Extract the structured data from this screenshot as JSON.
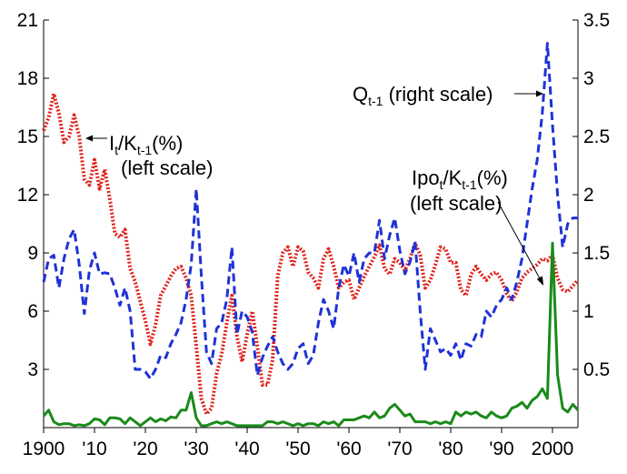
{
  "chart_data": {
    "type": "line",
    "x_axis": {
      "range": [
        1900,
        2005
      ],
      "ticks": [
        1900,
        1910,
        1920,
        1930,
        1940,
        1950,
        1960,
        1970,
        1980,
        1990,
        2000
      ],
      "tick_labels": [
        "1900",
        "'10",
        "'20",
        "'30",
        "'40",
        "'50",
        "'60",
        "'70",
        "'80",
        "'90",
        "2000"
      ]
    },
    "left_axis": {
      "range": [
        0,
        21
      ],
      "ticks": [
        3,
        6,
        9,
        12,
        15,
        18,
        21
      ],
      "tick_labels": [
        "3",
        "6",
        "9",
        "12",
        "15",
        "18",
        "21"
      ]
    },
    "right_axis": {
      "range": [
        0,
        3.5
      ],
      "ticks": [
        0.5,
        1,
        1.5,
        2,
        2.5,
        3,
        3.5
      ],
      "tick_labels": [
        "0.5",
        "1",
        "1.5",
        "2",
        "2.5",
        "3",
        "3.5"
      ]
    },
    "grid": false,
    "series": [
      {
        "key": "investment",
        "axis": "left",
        "color": "#e0231c",
        "style": "dotted",
        "x": [
          1900,
          1901,
          1902,
          1903,
          1904,
          1905,
          1906,
          1907,
          1908,
          1909,
          1910,
          1911,
          1912,
          1913,
          1914,
          1915,
          1916,
          1917,
          1918,
          1919,
          1920,
          1921,
          1922,
          1923,
          1924,
          1925,
          1926,
          1927,
          1928,
          1929,
          1930,
          1931,
          1932,
          1933,
          1934,
          1935,
          1936,
          1937,
          1938,
          1939,
          1940,
          1941,
          1942,
          1943,
          1944,
          1945,
          1946,
          1947,
          1948,
          1949,
          1950,
          1951,
          1952,
          1953,
          1954,
          1955,
          1956,
          1957,
          1958,
          1959,
          1960,
          1961,
          1962,
          1963,
          1964,
          1965,
          1966,
          1967,
          1968,
          1969,
          1970,
          1971,
          1972,
          1973,
          1974,
          1975,
          1976,
          1977,
          1978,
          1979,
          1980,
          1981,
          1982,
          1983,
          1984,
          1985,
          1986,
          1987,
          1988,
          1989,
          1990,
          1991,
          1992,
          1993,
          1994,
          1995,
          1996,
          1997,
          1998,
          1999,
          2000,
          2001,
          2002,
          2003,
          2004,
          2005
        ],
        "y": [
          15.3,
          16.0,
          17.2,
          16.2,
          14.7,
          15.0,
          16.1,
          15.0,
          12.8,
          12.5,
          13.8,
          12.3,
          13.3,
          11.8,
          10.0,
          9.8,
          10.2,
          8.2,
          7.5,
          6.5,
          5.5,
          4.3,
          5.3,
          6.8,
          7.3,
          7.8,
          8.2,
          8.3,
          7.7,
          6.8,
          4.2,
          1.5,
          0.7,
          1.0,
          2.8,
          3.8,
          5.4,
          6.8,
          4.7,
          3.4,
          4.8,
          6.0,
          4.2,
          2.2,
          2.2,
          3.5,
          7.8,
          9.0,
          9.3,
          8.3,
          9.3,
          9.1,
          8.0,
          7.7,
          7.2,
          8.7,
          9.2,
          8.3,
          7.2,
          7.5,
          7.6,
          6.6,
          7.2,
          7.8,
          8.3,
          8.8,
          9.4,
          8.2,
          7.9,
          8.7,
          8.5,
          8.1,
          8.7,
          9.5,
          8.9,
          7.2,
          7.6,
          8.4,
          9.3,
          9.2,
          8.5,
          8.5,
          7.1,
          6.8,
          7.9,
          8.3,
          7.9,
          7.6,
          7.9,
          8.0,
          7.6,
          6.9,
          6.5,
          7.0,
          7.7,
          8.0,
          8.2,
          8.4,
          8.7,
          8.6,
          8.9,
          7.7,
          7.1,
          7.0,
          7.3,
          7.6
        ]
      },
      {
        "key": "q",
        "axis": "right",
        "color": "#1f32d6",
        "style": "dashed",
        "x": [
          1900,
          1901,
          1902,
          1903,
          1904,
          1905,
          1906,
          1907,
          1908,
          1909,
          1910,
          1911,
          1912,
          1913,
          1914,
          1915,
          1916,
          1917,
          1918,
          1919,
          1920,
          1921,
          1922,
          1923,
          1924,
          1925,
          1926,
          1927,
          1928,
          1929,
          1930,
          1931,
          1932,
          1933,
          1934,
          1935,
          1936,
          1937,
          1938,
          1939,
          1940,
          1941,
          1942,
          1943,
          1944,
          1945,
          1946,
          1947,
          1948,
          1949,
          1950,
          1951,
          1952,
          1953,
          1954,
          1955,
          1956,
          1957,
          1958,
          1959,
          1960,
          1961,
          1962,
          1963,
          1964,
          1965,
          1966,
          1967,
          1968,
          1969,
          1970,
          1971,
          1972,
          1973,
          1974,
          1975,
          1976,
          1977,
          1978,
          1979,
          1980,
          1981,
          1982,
          1983,
          1984,
          1985,
          1986,
          1987,
          1988,
          1989,
          1990,
          1991,
          1992,
          1993,
          1994,
          1995,
          1996,
          1997,
          1998,
          1999,
          2000,
          2001,
          2002,
          2003,
          2004,
          2005
        ],
        "y": [
          1.25,
          1.45,
          1.48,
          1.2,
          1.45,
          1.62,
          1.7,
          1.4,
          0.98,
          1.35,
          1.5,
          1.32,
          1.33,
          1.32,
          1.2,
          1.05,
          1.2,
          1.0,
          0.5,
          0.5,
          0.48,
          0.42,
          0.5,
          0.62,
          0.6,
          0.72,
          0.8,
          0.9,
          1.1,
          1.4,
          2.05,
          1.3,
          0.65,
          0.55,
          0.85,
          0.9,
          1.1,
          1.55,
          0.8,
          1.0,
          0.95,
          0.82,
          0.45,
          0.6,
          0.7,
          0.78,
          0.65,
          0.55,
          0.5,
          0.55,
          0.68,
          0.72,
          0.55,
          0.62,
          0.9,
          1.1,
          1.0,
          0.85,
          1.2,
          1.4,
          1.3,
          1.5,
          1.25,
          1.45,
          1.5,
          1.5,
          1.78,
          1.45,
          1.65,
          1.8,
          1.52,
          1.32,
          1.42,
          1.6,
          1.0,
          0.5,
          0.85,
          0.75,
          0.65,
          0.68,
          0.62,
          0.72,
          0.58,
          0.72,
          0.7,
          0.8,
          0.78,
          1.0,
          0.95,
          1.05,
          1.1,
          1.2,
          1.1,
          1.25,
          1.45,
          1.75,
          2.05,
          2.3,
          2.7,
          3.3,
          2.6,
          2.0,
          1.55,
          1.75,
          1.8,
          1.8
        ]
      },
      {
        "key": "ipo",
        "axis": "left",
        "color": "#1a8a1a",
        "style": "solid",
        "x": [
          1900,
          1901,
          1902,
          1903,
          1904,
          1905,
          1906,
          1907,
          1908,
          1909,
          1910,
          1911,
          1912,
          1913,
          1914,
          1915,
          1916,
          1917,
          1918,
          1919,
          1920,
          1921,
          1922,
          1923,
          1924,
          1925,
          1926,
          1927,
          1928,
          1929,
          1930,
          1931,
          1932,
          1933,
          1934,
          1935,
          1936,
          1937,
          1938,
          1939,
          1940,
          1941,
          1942,
          1943,
          1944,
          1945,
          1946,
          1947,
          1948,
          1949,
          1950,
          1951,
          1952,
          1953,
          1954,
          1955,
          1956,
          1957,
          1958,
          1959,
          1960,
          1961,
          1962,
          1963,
          1964,
          1965,
          1966,
          1967,
          1968,
          1969,
          1970,
          1971,
          1972,
          1973,
          1974,
          1975,
          1976,
          1977,
          1978,
          1979,
          1980,
          1981,
          1982,
          1983,
          1984,
          1985,
          1986,
          1987,
          1988,
          1989,
          1990,
          1991,
          1992,
          1993,
          1994,
          1995,
          1996,
          1997,
          1998,
          1999,
          2000,
          2001,
          2002,
          2003,
          2004,
          2005
        ],
        "y": [
          0.6,
          0.9,
          0.3,
          0.15,
          0.2,
          0.2,
          0.1,
          0.15,
          0.1,
          0.2,
          0.45,
          0.4,
          0.15,
          0.5,
          0.5,
          0.45,
          0.2,
          0.5,
          0.3,
          0.1,
          0.3,
          0.5,
          0.3,
          0.45,
          0.35,
          0.55,
          0.5,
          0.9,
          0.9,
          1.8,
          0.5,
          0.1,
          0.1,
          0.2,
          0.3,
          0.2,
          0.3,
          0.2,
          0.1,
          0.1,
          0.1,
          0.1,
          0.1,
          0.1,
          0.3,
          0.3,
          0.2,
          0.3,
          0.2,
          0.1,
          0.2,
          0.1,
          0.2,
          0.2,
          0.1,
          0.3,
          0.2,
          0.3,
          0.1,
          0.4,
          0.4,
          0.4,
          0.5,
          0.6,
          0.5,
          0.8,
          0.5,
          0.6,
          1.0,
          1.2,
          0.9,
          0.6,
          0.7,
          0.3,
          0.3,
          0.3,
          0.2,
          0.3,
          0.2,
          0.3,
          0.2,
          0.8,
          0.6,
          0.8,
          0.7,
          0.8,
          0.6,
          0.5,
          0.8,
          0.6,
          0.5,
          0.6,
          1.0,
          1.1,
          1.3,
          1.0,
          1.4,
          1.6,
          2.0,
          1.5,
          9.5,
          2.7,
          1.0,
          0.8,
          1.2,
          0.9
        ]
      }
    ],
    "annotations": [
      {
        "key": "investment-label",
        "main_text": "I",
        "sub_text": "t",
        "main_text_2": "/K",
        "sub_text_2": "t-1",
        "main_text_3": "(%)",
        "line2": "(left scale)"
      },
      {
        "key": "q-label",
        "main_text": "Q",
        "sub_text": "t-1",
        "main_text_2": " (right scale)"
      },
      {
        "key": "ipo-label",
        "main_text": "Ipo",
        "sub_text": "t",
        "main_text_2": "/K",
        "sub_text_2": "t-1",
        "main_text_3": "(%)",
        "line2": "(left scale)"
      }
    ]
  }
}
